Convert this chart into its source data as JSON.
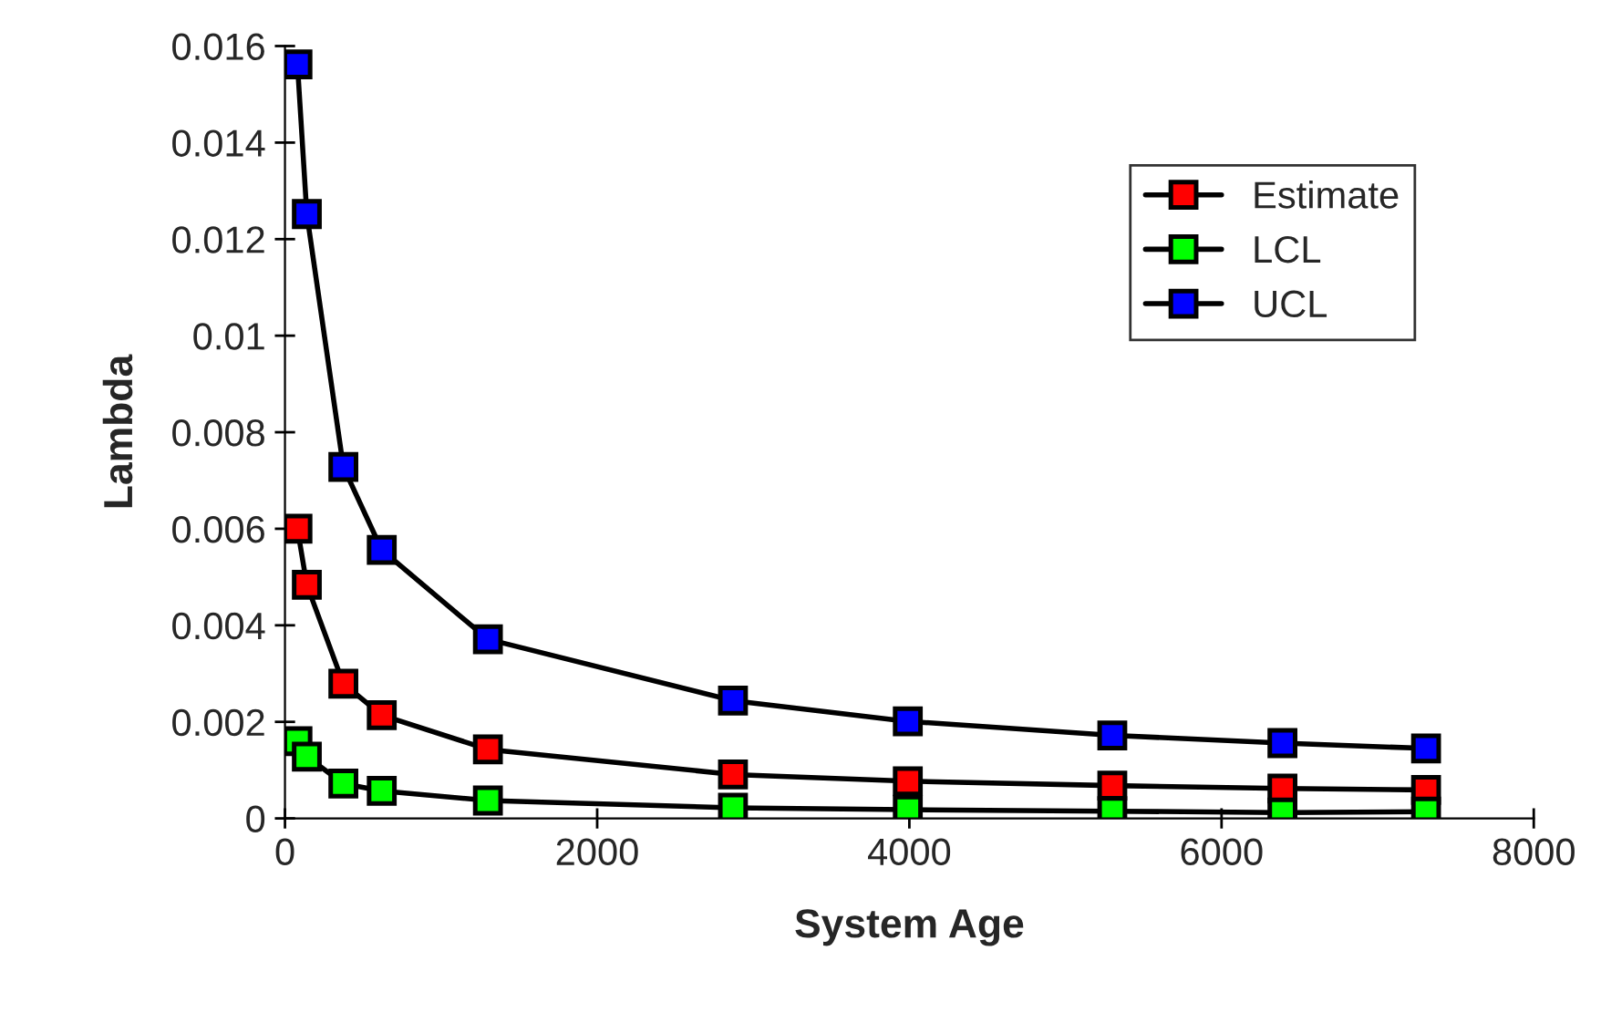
{
  "chart_data": {
    "type": "line",
    "xlabel": "System Age",
    "ylabel": "Lambda",
    "x": [
      80,
      140,
      374,
      620,
      1300,
      2870,
      3990,
      5300,
      6390,
      7310
    ],
    "series": [
      {
        "name": "Estimate",
        "color": "#ff0000",
        "values": [
          0.006,
          0.00484,
          0.00279,
          0.00214,
          0.00143,
          0.00091,
          0.00077,
          0.00068,
          0.00062,
          0.00059
        ]
      },
      {
        "name": "LCL",
        "color": "#00ff00",
        "values": [
          0.0016,
          0.00128,
          0.00072,
          0.00057,
          0.00037,
          0.00022,
          0.00018,
          0.00015,
          0.00012,
          0.00014
        ]
      },
      {
        "name": "UCL",
        "color": "#0000ff",
        "values": [
          0.01562,
          0.01252,
          0.00728,
          0.00556,
          0.00371,
          0.00244,
          0.00201,
          0.00172,
          0.00156,
          0.00145
        ]
      }
    ],
    "xlim": [
      0,
      8000
    ],
    "xticks": [
      0,
      2000,
      4000,
      6000,
      8000
    ],
    "ylim": [
      0,
      0.016
    ],
    "yticks": [
      0,
      0.002,
      0.004,
      0.006,
      0.008,
      0.01,
      0.012,
      0.014,
      0.016
    ],
    "grid": false,
    "legend": "top right",
    "marker": "square",
    "line_style": "solid"
  }
}
